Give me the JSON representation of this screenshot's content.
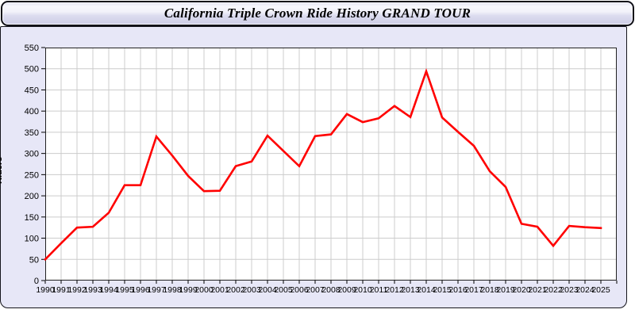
{
  "title": "California Triple Crown Ride History GRAND TOUR",
  "colors": {
    "line": "#ff0000",
    "panel_background": "#e7e7f7",
    "plot_background": "#ffffff",
    "gridline": "#cccccc",
    "axis": "#222222",
    "text": "#000000"
  },
  "chart_data": {
    "type": "line",
    "title": "California Triple Crown Ride History GRAND TOUR",
    "xlabel": "",
    "ylabel": "Riders",
    "x": [
      1990,
      1991,
      1992,
      1993,
      1994,
      1995,
      1996,
      1997,
      1998,
      1999,
      2000,
      2001,
      2002,
      2003,
      2004,
      2005,
      2006,
      2007,
      2008,
      2009,
      2010,
      2011,
      2012,
      2013,
      2014,
      2015,
      2016,
      2017,
      2018,
      2019,
      2020,
      2021,
      2022,
      2023,
      2024,
      2025
    ],
    "series": [
      {
        "name": "Riders",
        "color": "#ff0000",
        "values": [
          50,
          88,
          125,
          127,
          160,
          225,
          225,
          340,
          295,
          247,
          211,
          212,
          270,
          281,
          342,
          306,
          270,
          341,
          345,
          393,
          374,
          383,
          412,
          386,
          494,
          385,
          351,
          318,
          258,
          221,
          134,
          127,
          82,
          129,
          126,
          124
        ]
      }
    ],
    "ylim": [
      0,
      550
    ],
    "y_tick_step": 50,
    "x_extra_gridline_years": 1,
    "grid": true,
    "legend": "none"
  }
}
